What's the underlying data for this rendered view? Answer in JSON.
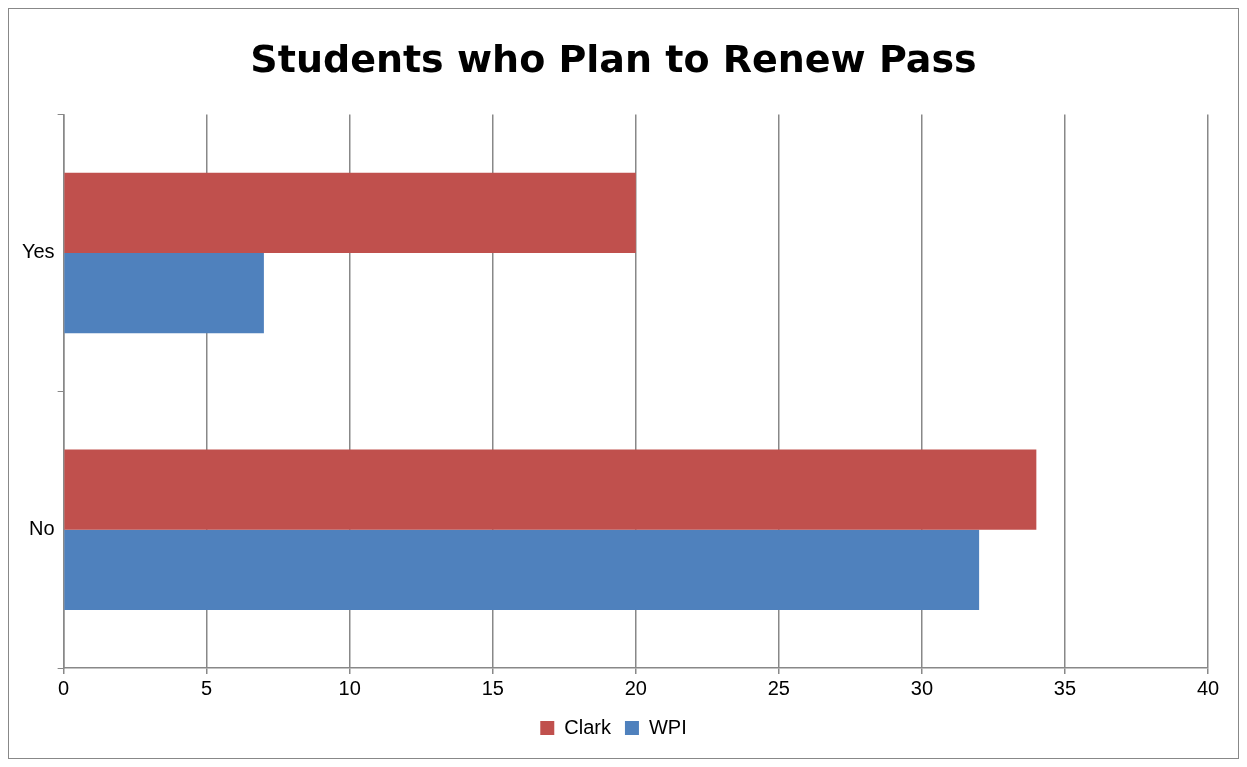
{
  "chart_data": {
    "type": "bar",
    "orientation": "horizontal",
    "title": "Students who Plan to Renew Pass",
    "categories": [
      "Yes",
      "No"
    ],
    "series": [
      {
        "name": "Clark",
        "color": "#c0504d",
        "values": [
          20,
          34
        ]
      },
      {
        "name": "WPI",
        "color": "#4f81bd",
        "values": [
          7,
          32
        ]
      }
    ],
    "xlim": [
      0,
      40
    ],
    "xticks": [
      0,
      5,
      10,
      15,
      20,
      25,
      30,
      35,
      40
    ],
    "grid": "x",
    "legend": "bottom"
  }
}
